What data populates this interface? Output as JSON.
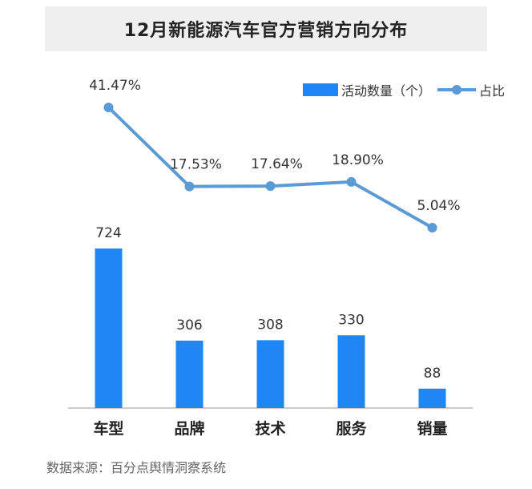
{
  "title": "12月新能源汽车官方营销方向分布",
  "legend": {
    "bar_label": "活动数量（个）",
    "line_label": "占比"
  },
  "source": "数据来源：百分点舆情洞察系统",
  "colors": {
    "bar": "#1f86f5",
    "line": "#5b9bd5",
    "axis": "#bbbbbb",
    "text": "#333333",
    "category": "#222222"
  },
  "chart_data": {
    "type": "bar",
    "title": "12月新能源汽车官方营销方向分布",
    "categories": [
      "车型",
      "品牌",
      "技术",
      "服务",
      "销量"
    ],
    "series": [
      {
        "name": "活动数量（个）",
        "type": "bar",
        "values": [
          724,
          306,
          308,
          330,
          88
        ],
        "labels": [
          "724",
          "306",
          "308",
          "330",
          "88"
        ]
      },
      {
        "name": "占比",
        "type": "line",
        "values": [
          41.47,
          17.53,
          17.64,
          18.9,
          5.04
        ],
        "labels": [
          "41.47%",
          "17.53%",
          "17.64%",
          "18.90%",
          "5.04%"
        ]
      }
    ],
    "grid": false,
    "legend_position": "top-right"
  }
}
